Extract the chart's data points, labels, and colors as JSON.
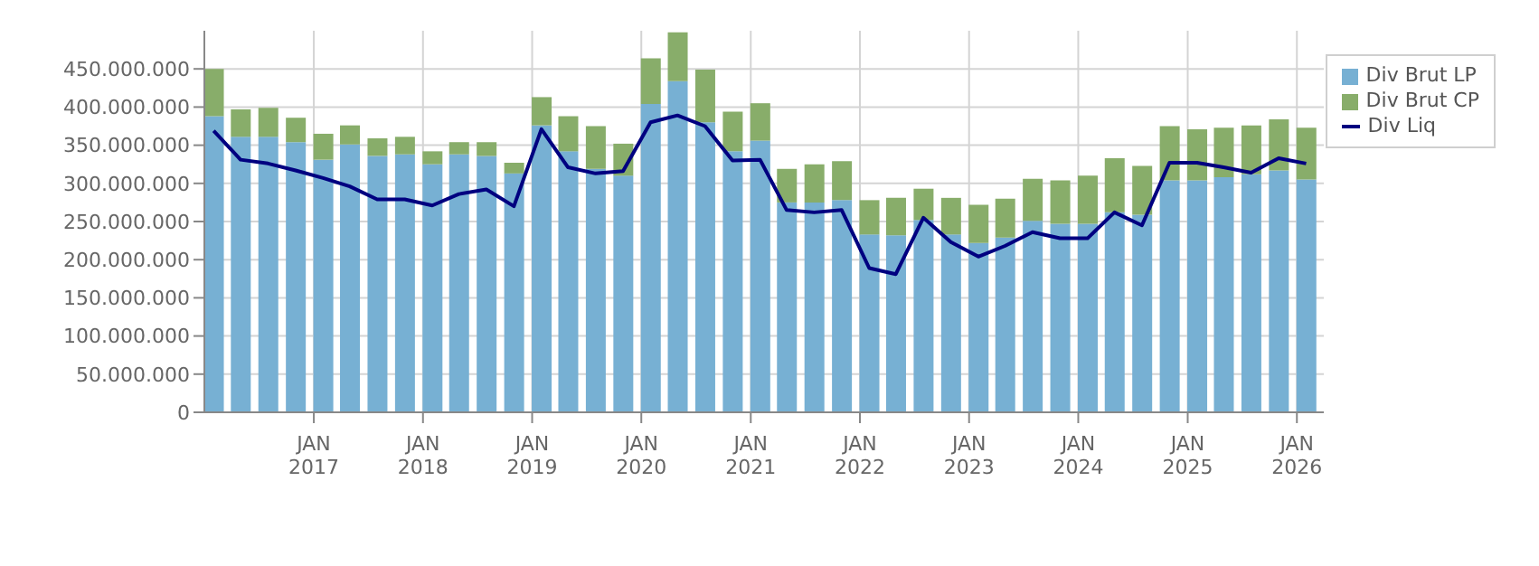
{
  "chart_data": {
    "type": "bar",
    "stacked": true,
    "x": [
      "2016-02",
      "2016-05",
      "2016-08",
      "2016-11",
      "2017-02",
      "2017-05",
      "2017-08",
      "2017-11",
      "2018-02",
      "2018-05",
      "2018-08",
      "2018-11",
      "2019-02",
      "2019-05",
      "2019-08",
      "2019-11",
      "2020-02",
      "2020-05",
      "2020-08",
      "2020-11",
      "2021-02",
      "2021-05",
      "2021-08",
      "2021-11",
      "2022-02",
      "2022-05",
      "2022-08",
      "2022-11",
      "2023-02",
      "2023-05",
      "2023-08",
      "2023-11",
      "2024-02",
      "2024-05",
      "2024-08",
      "2024-11",
      "2025-02",
      "2025-05",
      "2025-08",
      "2025-11",
      "2026-02"
    ],
    "series": [
      {
        "name": "Div Brut LP",
        "color": "#77b0d3",
        "values": [
          388000000,
          361000000,
          361000000,
          354000000,
          331000000,
          351000000,
          336000000,
          338000000,
          325000000,
          338000000,
          336000000,
          313000000,
          376000000,
          342000000,
          319000000,
          310000000,
          404000000,
          434000000,
          380000000,
          342000000,
          356000000,
          275000000,
          275000000,
          278000000,
          233000000,
          232000000,
          252000000,
          233000000,
          222000000,
          229000000,
          251000000,
          247000000,
          247000000,
          262000000,
          259000000,
          304000000,
          304000000,
          308000000,
          312000000,
          317000000,
          305000000
        ]
      },
      {
        "name": "Div Brut CP",
        "color": "#88ad6a",
        "values": [
          62000000,
          36000000,
          38000000,
          32000000,
          34000000,
          25000000,
          23000000,
          23000000,
          17000000,
          16000000,
          18000000,
          14000000,
          37000000,
          46000000,
          56000000,
          42000000,
          60000000,
          64000000,
          69000000,
          52000000,
          49000000,
          44000000,
          50000000,
          51000000,
          45000000,
          49000000,
          41000000,
          48000000,
          50000000,
          51000000,
          55000000,
          57000000,
          63000000,
          71000000,
          64000000,
          71000000,
          67000000,
          65000000,
          64000000,
          67000000,
          68000000
        ]
      },
      {
        "name": "Div Liq",
        "type": "line",
        "color": "#000080",
        "values": [
          369000000,
          331000000,
          326000000,
          317000000,
          307000000,
          296000000,
          279000000,
          279000000,
          271000000,
          286000000,
          292000000,
          270000000,
          371000000,
          321000000,
          313000000,
          316000000,
          380000000,
          389000000,
          375000000,
          330000000,
          331000000,
          265000000,
          262000000,
          265000000,
          189000000,
          181000000,
          255000000,
          223000000,
          204000000,
          218000000,
          236000000,
          228000000,
          228000000,
          262000000,
          245000000,
          327000000,
          327000000,
          321000000,
          314000000,
          333000000,
          326000000
        ]
      }
    ],
    "xlim": [
      "2016-01",
      "2026-04"
    ],
    "xticks": [
      {
        "value": "2017-01",
        "label": "JAN\n2017"
      },
      {
        "value": "2018-01",
        "label": "JAN\n2018"
      },
      {
        "value": "2019-01",
        "label": "JAN\n2019"
      },
      {
        "value": "2020-01",
        "label": "JAN\n2020"
      },
      {
        "value": "2021-01",
        "label": "JAN\n2021"
      },
      {
        "value": "2022-01",
        "label": "JAN\n2022"
      },
      {
        "value": "2023-01",
        "label": "JAN\n2023"
      },
      {
        "value": "2024-01",
        "label": "JAN\n2024"
      },
      {
        "value": "2025-01",
        "label": "JAN\n2025"
      },
      {
        "value": "2026-01",
        "label": "JAN\n2026"
      }
    ],
    "ylim": [
      0,
      500000000
    ],
    "yticks": [
      0,
      {
        "value": 50000000,
        "label": "50.000.000"
      },
      {
        "value": 100000000,
        "label": "100.000.000"
      },
      {
        "value": 150000000,
        "label": "150.000.000"
      },
      {
        "value": 200000000,
        "label": "200.000.000"
      },
      {
        "value": 250000000,
        "label": "250.000.000"
      },
      {
        "value": 300000000,
        "label": "300.000.000"
      },
      {
        "value": 350000000,
        "label": "350.000.000"
      },
      {
        "value": 400000000,
        "label": "400.000.000"
      },
      {
        "value": 450000000,
        "label": "450.000.000"
      }
    ],
    "grid": true,
    "legend": "top right",
    "marker": "none",
    "line_style": "solid"
  }
}
